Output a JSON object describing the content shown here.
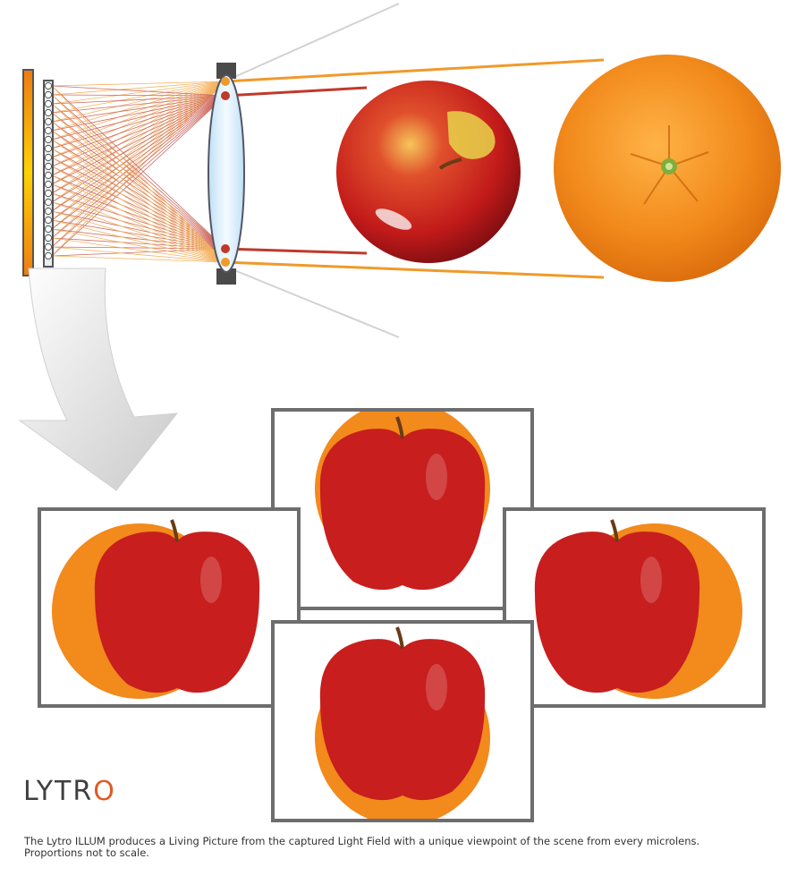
{
  "logo": {
    "text_main": "LYTR",
    "text_o": "O",
    "accent_color": "#e05a25"
  },
  "caption": {
    "line1": "The Lytro ILLUM produces a Living Picture from the captured Light Field with a unique viewpoint of the scene from every microlens.",
    "line2": "Proportions not to scale."
  },
  "colors": {
    "apple": "#c81e1e",
    "orange": "#f28a1c",
    "ray_red": "#c0392b",
    "ray_orange": "#f09a2a",
    "frame": "#6d6d6d"
  },
  "viewpoints": [
    "top-view",
    "left-view",
    "right-view",
    "bottom-view"
  ]
}
